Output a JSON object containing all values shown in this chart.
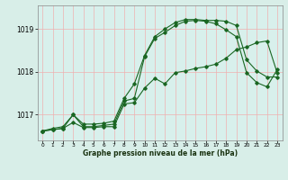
{
  "xlabel": "Graphe pression niveau de la mer (hPa)",
  "x_ticks": [
    0,
    1,
    2,
    3,
    4,
    5,
    6,
    7,
    8,
    9,
    10,
    11,
    12,
    13,
    14,
    15,
    16,
    17,
    18,
    19,
    20,
    21,
    22,
    23
  ],
  "xlim": [
    -0.5,
    23.5
  ],
  "ylim": [
    1016.4,
    1019.55
  ],
  "yticks": [
    1017,
    1018,
    1019
  ],
  "bg_color": "#d8eee8",
  "plot_bg_color": "#d8f0ec",
  "grid_color": "#f0b0b0",
  "line_color": "#1a6622",
  "line1_x": [
    0,
    1,
    2,
    3,
    4,
    5,
    6,
    7,
    8,
    9,
    10,
    11,
    12,
    13,
    14,
    15,
    16,
    17,
    18,
    19,
    20,
    21,
    22,
    23
  ],
  "line1_y": [
    1016.62,
    1016.68,
    1016.72,
    1017.0,
    1016.78,
    1016.78,
    1016.8,
    1016.85,
    1017.38,
    1017.72,
    1018.38,
    1018.82,
    1019.0,
    1019.15,
    1019.22,
    1019.22,
    1019.2,
    1019.2,
    1019.18,
    1019.08,
    1018.28,
    1018.02,
    1017.88,
    1017.88
  ],
  "line2_x": [
    0,
    1,
    2,
    3,
    4,
    5,
    6,
    7,
    8,
    9,
    10,
    11,
    12,
    13,
    14,
    15,
    16,
    17,
    18,
    19,
    20,
    21,
    22,
    23
  ],
  "line2_y": [
    1016.62,
    1016.65,
    1016.68,
    1017.0,
    1016.72,
    1016.72,
    1016.75,
    1016.78,
    1017.32,
    1017.38,
    1018.35,
    1018.78,
    1018.92,
    1019.08,
    1019.18,
    1019.2,
    1019.18,
    1019.12,
    1018.98,
    1018.82,
    1017.98,
    1017.75,
    1017.65,
    1018.05
  ],
  "line3_x": [
    0,
    1,
    2,
    3,
    4,
    5,
    6,
    7,
    8,
    9,
    10,
    11,
    12,
    13,
    14,
    15,
    16,
    17,
    18,
    19,
    20,
    21,
    22,
    23
  ],
  "line3_y": [
    1016.62,
    1016.65,
    1016.68,
    1016.82,
    1016.7,
    1016.7,
    1016.72,
    1016.72,
    1017.25,
    1017.28,
    1017.62,
    1017.85,
    1017.72,
    1017.98,
    1018.02,
    1018.08,
    1018.12,
    1018.18,
    1018.32,
    1018.52,
    1018.58,
    1018.68,
    1018.72,
    1017.98
  ]
}
